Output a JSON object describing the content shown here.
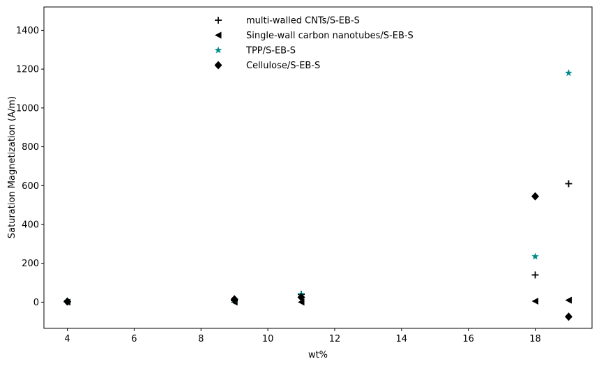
{
  "chart_data": {
    "type": "scatter",
    "title": "",
    "xlabel": "wt%",
    "ylabel": "Saturation Magnetization (A/m)",
    "xlim": [
      3.3,
      19.7
    ],
    "ylim": [
      -135,
      1520
    ],
    "xticks": [
      4,
      6,
      8,
      10,
      12,
      14,
      16,
      18
    ],
    "yticks": [
      0,
      200,
      400,
      600,
      800,
      1000,
      1200,
      1400
    ],
    "grid": false,
    "legend_position": "top-center",
    "series": [
      {
        "name": "multi-walled CNTs/S-EB-S",
        "marker": "plus",
        "color": "#000000",
        "points": [
          [
            4,
            2
          ],
          [
            9,
            8
          ],
          [
            11,
            40
          ],
          [
            18,
            140
          ],
          [
            19,
            610
          ]
        ]
      },
      {
        "name": "Single-wall carbon nanotubes/S-EB-S",
        "marker": "triangle-left",
        "color": "#000000",
        "points": [
          [
            4,
            0
          ],
          [
            9,
            0
          ],
          [
            11,
            0
          ],
          [
            18,
            5
          ],
          [
            19,
            10
          ]
        ]
      },
      {
        "name": "TPP/S-EB-S",
        "marker": "star",
        "color": "#008b8b",
        "points": [
          [
            4,
            5
          ],
          [
            9,
            12
          ],
          [
            11,
            40
          ],
          [
            18,
            235
          ],
          [
            19,
            1180
          ]
        ]
      },
      {
        "name": "Cellulose/S-EB-S",
        "marker": "diamond",
        "color": "#000000",
        "points": [
          [
            4,
            3
          ],
          [
            9,
            15
          ],
          [
            11,
            25
          ],
          [
            18,
            545
          ],
          [
            19,
            -75
          ]
        ]
      }
    ]
  }
}
